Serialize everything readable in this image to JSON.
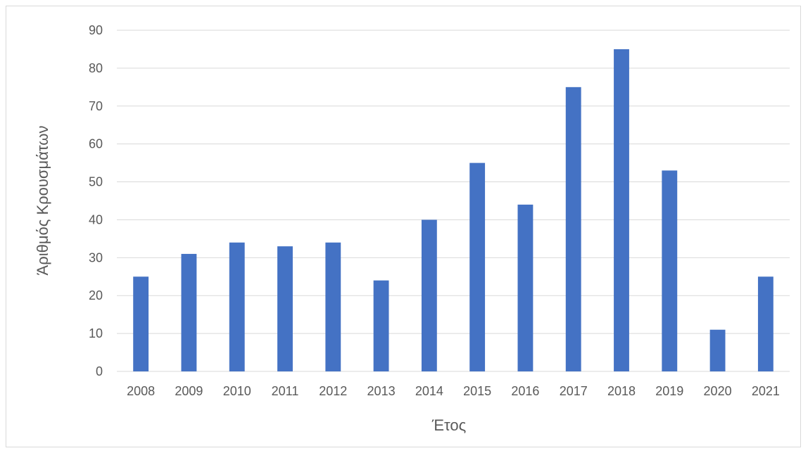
{
  "chart_data": {
    "type": "bar",
    "title": "",
    "xlabel": "Έτος",
    "ylabel": "Άριθμός Κρουσμάτων",
    "categories": [
      "2008",
      "2009",
      "2010",
      "2011",
      "2012",
      "2013",
      "2014",
      "2015",
      "2016",
      "2017",
      "2018",
      "2019",
      "2020",
      "2021"
    ],
    "series": [
      {
        "values": [
          25,
          31,
          34,
          33,
          34,
          24,
          40,
          55,
          44,
          75,
          85,
          53,
          11,
          25
        ]
      }
    ],
    "ylim": [
      0,
      90
    ],
    "yticks": [
      "0",
      "10",
      "20",
      "30",
      "40",
      "50",
      "60",
      "70",
      "80",
      "90"
    ],
    "grid": true,
    "legend": "none",
    "colors": {
      "bar": "#4472C4",
      "grid": "#d9d9d9",
      "text": "#595959"
    }
  }
}
